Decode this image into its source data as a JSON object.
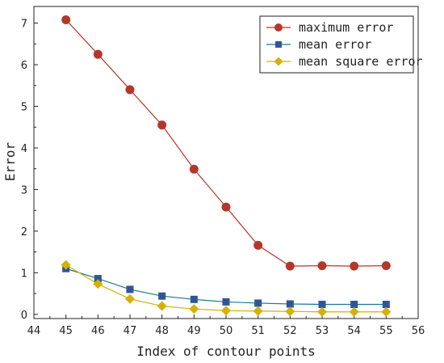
{
  "chart_data": {
    "type": "line",
    "title": "",
    "xlabel": "Index of contour points",
    "ylabel": "Error",
    "xlim": [
      44,
      56
    ],
    "ylim": [
      -0.1,
      7.4
    ],
    "x_ticks": [
      44,
      45,
      46,
      47,
      48,
      49,
      50,
      51,
      52,
      53,
      54,
      55,
      56
    ],
    "y_ticks": [
      0,
      1,
      2,
      3,
      4,
      5,
      6,
      7
    ],
    "grid": false,
    "legend_position": "top-right",
    "x": [
      45,
      46,
      47,
      48,
      49,
      50,
      51,
      52,
      53,
      54,
      55
    ],
    "series": [
      {
        "name": "maximum error",
        "marker": "circle",
        "color": "#b5372b",
        "values": [
          7.08,
          6.25,
          5.4,
          4.55,
          3.49,
          2.58,
          1.66,
          1.16,
          1.17,
          1.16,
          1.17
        ]
      },
      {
        "name": "mean error",
        "marker": "square",
        "color": "#2f5597",
        "line_color": "#1a7a8c",
        "values": [
          1.1,
          0.86,
          0.6,
          0.44,
          0.36,
          0.3,
          0.27,
          0.25,
          0.24,
          0.24,
          0.24
        ]
      },
      {
        "name": "mean square error",
        "marker": "diamond",
        "color": "#d4b106",
        "line_color": "#d4b106",
        "values": [
          1.19,
          0.73,
          0.37,
          0.2,
          0.13,
          0.09,
          0.08,
          0.07,
          0.06,
          0.06,
          0.06
        ]
      }
    ]
  }
}
